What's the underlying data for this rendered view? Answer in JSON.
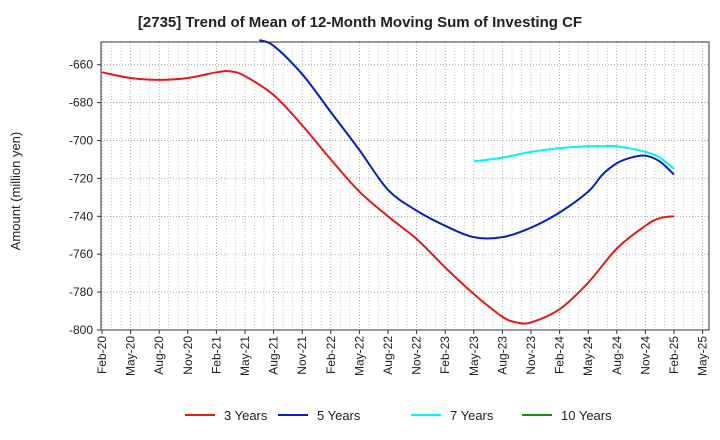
{
  "chart_data": {
    "type": "line",
    "title": "[2735]  Trend of Mean of 12-Month Moving Sum of Investing CF",
    "xlabel": "",
    "ylabel": "Amount (million yen)",
    "ylim": [
      -800,
      -648
    ],
    "yticks": [
      -660,
      -680,
      -700,
      -720,
      -740,
      -760,
      -780,
      -800
    ],
    "categories": [
      "Feb-20",
      "May-20",
      "Aug-20",
      "Nov-20",
      "Feb-21",
      "May-21",
      "Aug-21",
      "Nov-21",
      "Feb-22",
      "May-22",
      "Aug-22",
      "Nov-22",
      "Feb-23",
      "May-23",
      "Aug-23",
      "Nov-23",
      "Feb-24",
      "May-24",
      "Aug-24",
      "Nov-24",
      "Feb-25",
      "May-25"
    ],
    "grid": true,
    "legend_position": "bottom",
    "series": [
      {
        "name": "3 Years",
        "color": "#e31a1c",
        "x": [
          0,
          1,
          2,
          3,
          4,
          4.5,
          5,
          6,
          7,
          8,
          9,
          10,
          11,
          12,
          13,
          14,
          14.5,
          15,
          16,
          17,
          18,
          19,
          19.5,
          20
        ],
        "values": [
          -664,
          -667,
          -668,
          -667,
          -664,
          -663.5,
          -666,
          -676,
          -692,
          -710,
          -727,
          -740,
          -752,
          -767,
          -781,
          -793,
          -796,
          -796,
          -789,
          -775,
          -757,
          -745,
          -741,
          -740
        ]
      },
      {
        "name": "5 Years",
        "color": "#0a1ec8",
        "x": [
          5.5,
          6,
          7,
          8,
          9,
          10,
          11,
          12,
          13,
          14,
          15,
          16,
          17,
          17.5,
          18,
          18.5,
          19,
          19.5,
          20
        ],
        "values": [
          -647,
          -650,
          -665,
          -685,
          -705,
          -726,
          -737,
          -745,
          -751,
          -751,
          -746,
          -738,
          -727,
          -718,
          -712,
          -709,
          -708,
          -711,
          -718
        ]
      },
      {
        "name": "7 Years",
        "color": "#00f5f5",
        "x": [
          13,
          14,
          15,
          16,
          17,
          17.5,
          18,
          19,
          19.5,
          20
        ],
        "values": [
          -711,
          -709,
          -706,
          -704,
          -703,
          -703,
          -703,
          -706,
          -709,
          -715
        ]
      },
      {
        "name": "10 Years",
        "color": "#1a8a1a",
        "x": [],
        "values": []
      }
    ]
  }
}
